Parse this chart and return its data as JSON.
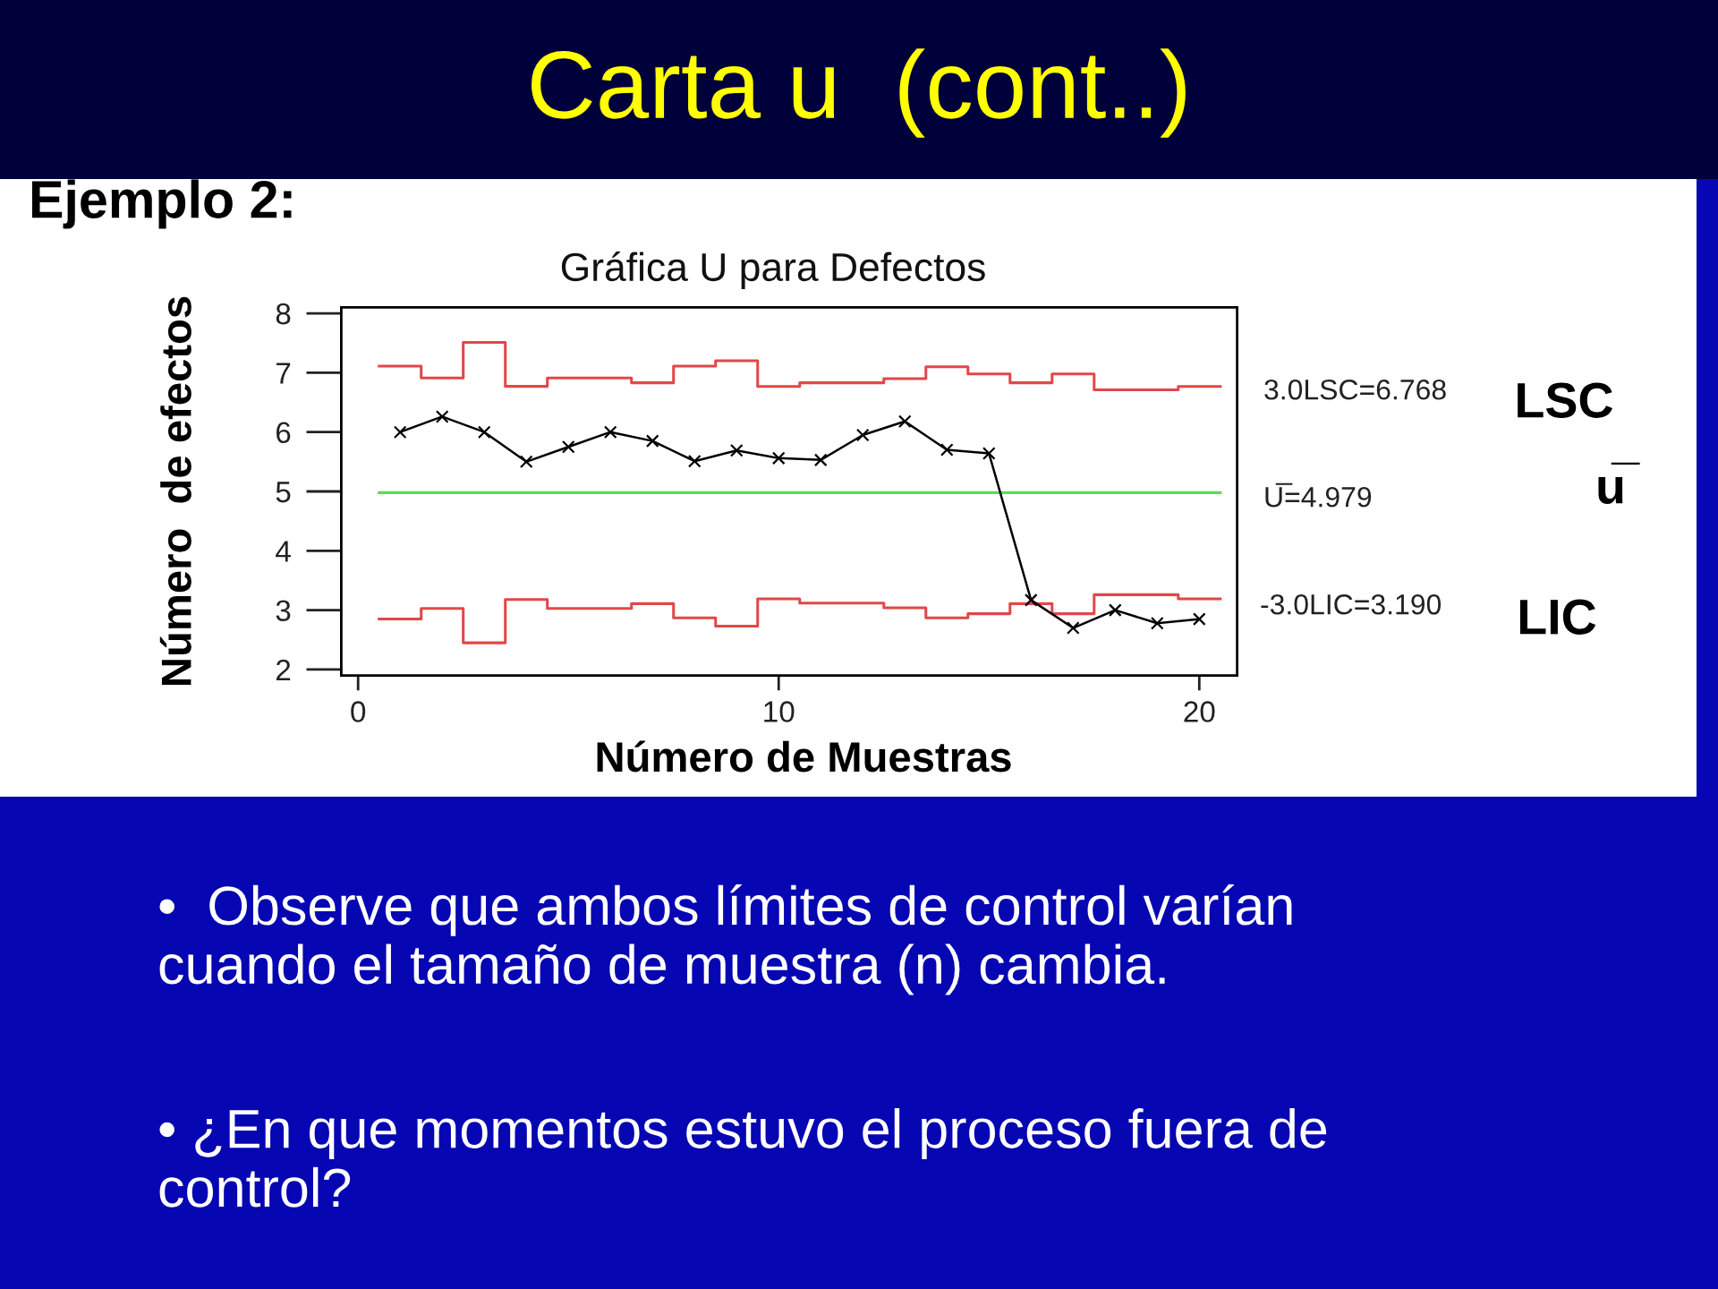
{
  "chart_data": {
    "type": "line",
    "title": "Carta u  (cont..)",
    "subtitle": "Gráfica U para Defectos",
    "xlabel": "Número de Muestras",
    "ylabel": "Número  de efectos",
    "x": [
      1,
      2,
      3,
      4,
      5,
      6,
      7,
      8,
      9,
      10,
      11,
      12,
      13,
      14,
      15,
      16,
      17,
      18,
      19,
      20
    ],
    "series": [
      {
        "type": "step",
        "color": "#e04848",
        "x": [
          0.5,
          1.5,
          2.5,
          3.5,
          4.5,
          5.5,
          6.5,
          7.5,
          8.5,
          9.5,
          10.5,
          11.5,
          12.5,
          13.5,
          14.5,
          15.5,
          16.5,
          17.5,
          18.5,
          19.5,
          20.5
        ],
        "values": [
          7.11,
          6.91,
          7.51,
          6.77,
          6.91,
          6.91,
          6.83,
          7.11,
          7.2,
          6.768,
          6.83,
          6.83,
          6.9,
          7.1,
          6.98,
          6.83,
          6.98,
          6.71,
          6.71,
          6.768,
          6.768
        ]
      },
      {
        "type": "step",
        "color": "#55e055",
        "x": [
          0.5,
          20.5
        ],
        "values": [
          4.979,
          4.979
        ]
      },
      {
        "type": "step",
        "color": "#e04848",
        "x": [
          0.5,
          1.5,
          2.5,
          3.5,
          4.5,
          5.5,
          6.5,
          7.5,
          8.5,
          9.5,
          10.5,
          11.5,
          12.5,
          13.5,
          14.5,
          15.5,
          16.5,
          17.5,
          18.5,
          19.5,
          20.5
        ],
        "values": [
          2.85,
          3.03,
          2.45,
          3.18,
          3.03,
          3.03,
          3.11,
          2.87,
          2.73,
          3.19,
          3.12,
          3.12,
          3.04,
          2.87,
          2.94,
          3.11,
          2.94,
          3.26,
          3.26,
          3.19,
          3.19
        ]
      },
      {
        "color": "#000000",
        "marker": "cross",
        "values": [
          6.0,
          6.26,
          6.0,
          5.5,
          5.75,
          6.0,
          5.85,
          5.51,
          5.69,
          5.56,
          5.53,
          5.95,
          6.18,
          5.7,
          5.64,
          3.17,
          2.7,
          3.0,
          2.78,
          2.85
        ]
      }
    ],
    "xlim": [
      -0.4,
      20.9
    ],
    "xticks": [
      0,
      10,
      20
    ],
    "ylim": [
      1.9,
      8.1
    ],
    "yticks": [
      2,
      3,
      4,
      5,
      6,
      7,
      8
    ],
    "annotations": [
      "Ejemplo 2:",
      "3.0LSC=6.768",
      "U̅=4.979",
      "-3.0LIC=3.190",
      "LSC",
      "u̅",
      "LIC",
      "•  Observe que ambos límites de control varían\ncuando el tamaño de muestra (n) cambia.",
      "• ¿En que momentos estuvo el proceso fuera de\ncontrol?"
    ]
  }
}
